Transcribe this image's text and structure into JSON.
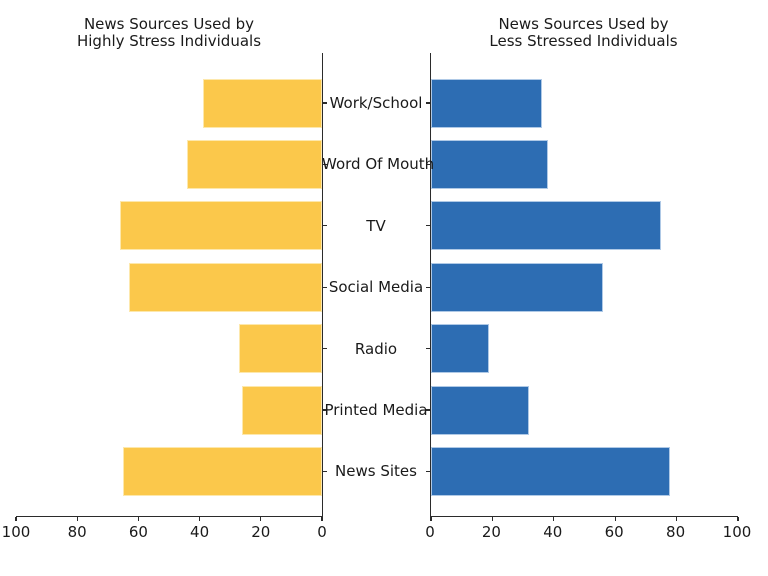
{
  "figure": {
    "background_color": "#ffffff",
    "text_color": "#1a1a1a",
    "spine_color": "#2b2b2b"
  },
  "categories": [
    "Work/School",
    "Word Of Mouth",
    "TV",
    "Social Media",
    "Radio",
    "Printed Media",
    "News Sites"
  ],
  "chart_data": [
    {
      "type": "bar",
      "orientation": "horizontal",
      "title": "News Sources Used by\nHighly Stress Individuals",
      "categories": [
        "Work/School",
        "Word Of Mouth",
        "TV",
        "Social Media",
        "Radio",
        "Printed Media",
        "News Sites"
      ],
      "values": [
        39,
        44,
        66,
        63,
        27,
        26,
        65
      ],
      "xlim": [
        100,
        0
      ],
      "x_ticks": [
        100,
        80,
        60,
        40,
        20,
        0
      ],
      "xlabel": "",
      "ylabel": "",
      "grid": false,
      "legend": false,
      "bars_extend": "left",
      "bar_color": "#FBC84B",
      "bar_edge_color": "#FDE8AC"
    },
    {
      "type": "bar",
      "orientation": "horizontal",
      "title": "News Sources Used by\nLess Stressed Individuals",
      "categories": [
        "Work/School",
        "Word Of Mouth",
        "TV",
        "Social Media",
        "Radio",
        "Printed Media",
        "News Sites"
      ],
      "values": [
        36,
        38,
        75,
        56,
        19,
        32,
        78
      ],
      "xlim": [
        0,
        100
      ],
      "x_ticks": [
        0,
        20,
        40,
        60,
        80,
        100
      ],
      "xlabel": "",
      "ylabel": "",
      "grid": false,
      "legend": false,
      "bars_extend": "right",
      "bar_color": "#2D6DB3",
      "bar_edge_color": "#AFC9E6"
    }
  ]
}
